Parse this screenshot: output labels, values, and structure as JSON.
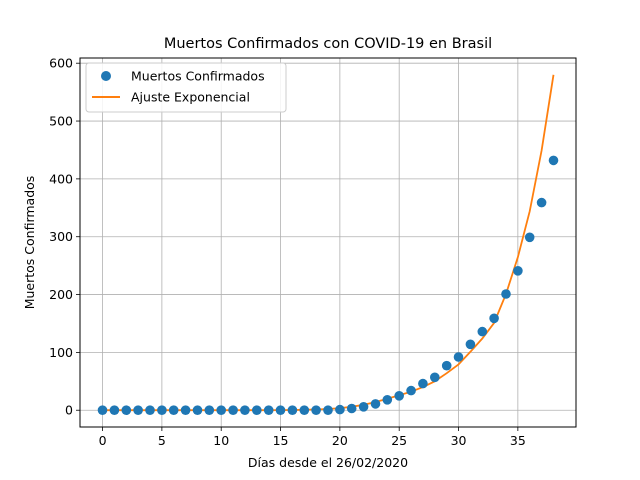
{
  "chart_data": {
    "type": "scatter",
    "title": "Muertos Confirmados con COVID-19 en Brasil",
    "xlabel": "Días desde el 26/02/2020",
    "ylabel": "Muertos Confirmados",
    "xlim": [
      -1.9,
      39.9
    ],
    "ylim": [
      -29,
      609
    ],
    "xticks": [
      0,
      5,
      10,
      15,
      20,
      25,
      30,
      35
    ],
    "yticks": [
      0,
      100,
      200,
      300,
      400,
      500,
      600
    ],
    "grid": true,
    "legend_position": "upper-left",
    "series": [
      {
        "name": "Muertos Confirmados",
        "kind": "scatter",
        "color": "#1f77b4",
        "x": [
          0,
          1,
          2,
          3,
          4,
          5,
          6,
          7,
          8,
          9,
          10,
          11,
          12,
          13,
          14,
          15,
          16,
          17,
          18,
          19,
          20,
          21,
          22,
          23,
          24,
          25,
          26,
          27,
          28,
          29,
          30,
          31,
          32,
          33,
          34,
          35,
          36,
          37,
          38
        ],
        "y": [
          0,
          0,
          0,
          0,
          0,
          0,
          0,
          0,
          0,
          0,
          0,
          0,
          0,
          0,
          0,
          0,
          0,
          0,
          0,
          0,
          1,
          3,
          6,
          11,
          18,
          25,
          34,
          46,
          57,
          77,
          92,
          114,
          136,
          159,
          201,
          241,
          299,
          359,
          432
        ]
      },
      {
        "name": "Ajuste Exponencial",
        "kind": "line",
        "color": "#ff7f0e",
        "x": [
          0,
          1,
          2,
          3,
          4,
          5,
          6,
          7,
          8,
          9,
          10,
          11,
          12,
          13,
          14,
          15,
          16,
          17,
          18,
          19,
          20,
          21,
          22,
          23,
          24,
          25,
          26,
          27,
          28,
          29,
          30,
          31,
          32,
          33,
          34,
          35,
          36,
          37,
          38
        ],
        "y": [
          0,
          0,
          0,
          0,
          0,
          0,
          0,
          0,
          0,
          0,
          0,
          0,
          0,
          0,
          0.1,
          0.3,
          0.4,
          0.8,
          1.3,
          2.2,
          3.7,
          5.9,
          9.4,
          14,
          20,
          26,
          32,
          40,
          50,
          64,
          79,
          101,
          124,
          151,
          201,
          265,
          344,
          449,
          580
        ]
      }
    ]
  }
}
